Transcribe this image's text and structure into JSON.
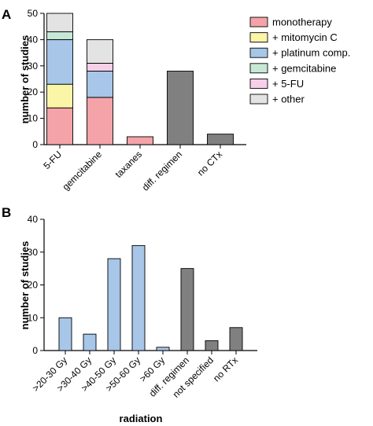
{
  "chart_data": [
    {
      "panel_label": "A",
      "type": "bar",
      "stacked": true,
      "ylabel": "number of studies",
      "xlabel": "",
      "ylim": [
        0,
        50
      ],
      "yticks": [
        0,
        10,
        20,
        30,
        40,
        50
      ],
      "categories": [
        "5-FU",
        "gemcitabine",
        "taxanes",
        "diff. regimen",
        "no CTx"
      ],
      "series": [
        {
          "name": "monotherapy",
          "color": "#f4a3a8",
          "values": [
            14,
            18,
            3,
            0,
            0
          ]
        },
        {
          "name": "+ mitomycin C",
          "color": "#fbf5a8",
          "values": [
            9,
            0,
            0,
            0,
            0
          ]
        },
        {
          "name": "+ platinum comp.",
          "color": "#a7c6e8",
          "values": [
            17,
            10,
            0,
            0,
            0
          ]
        },
        {
          "name": "+ gemcitabine",
          "color": "#c8e8d6",
          "values": [
            3,
            0,
            0,
            0,
            0
          ]
        },
        {
          "name": "+ 5-FU",
          "color": "#f6cfe8",
          "values": [
            0,
            3,
            0,
            0,
            0
          ]
        },
        {
          "name": "+ other",
          "color": "#e3e3e3",
          "values": [
            7,
            9,
            0,
            0,
            0
          ]
        }
      ],
      "other_bars": [
        {
          "category": "diff. regimen",
          "value": 28,
          "color": "#808080"
        },
        {
          "category": "no CTx",
          "value": 4,
          "color": "#808080"
        }
      ],
      "legend_position": "right"
    },
    {
      "panel_label": "B",
      "type": "bar",
      "ylabel": "number of studies",
      "xlabel": "radiation",
      "ylim": [
        0,
        40
      ],
      "yticks": [
        0,
        10,
        20,
        30,
        40
      ],
      "categories": [
        ">20-30 Gy",
        ">30-40 Gy",
        ">40-50 Gy",
        ">50-60 Gy",
        ">60 Gy",
        "diff. regimen",
        "not specified",
        "no RTx"
      ],
      "values": [
        10,
        5,
        28,
        32,
        1,
        25,
        3,
        7
      ],
      "colors": [
        "#a7c6e8",
        "#a7c6e8",
        "#a7c6e8",
        "#a7c6e8",
        "#a7c6e8",
        "#808080",
        "#808080",
        "#808080"
      ]
    }
  ]
}
